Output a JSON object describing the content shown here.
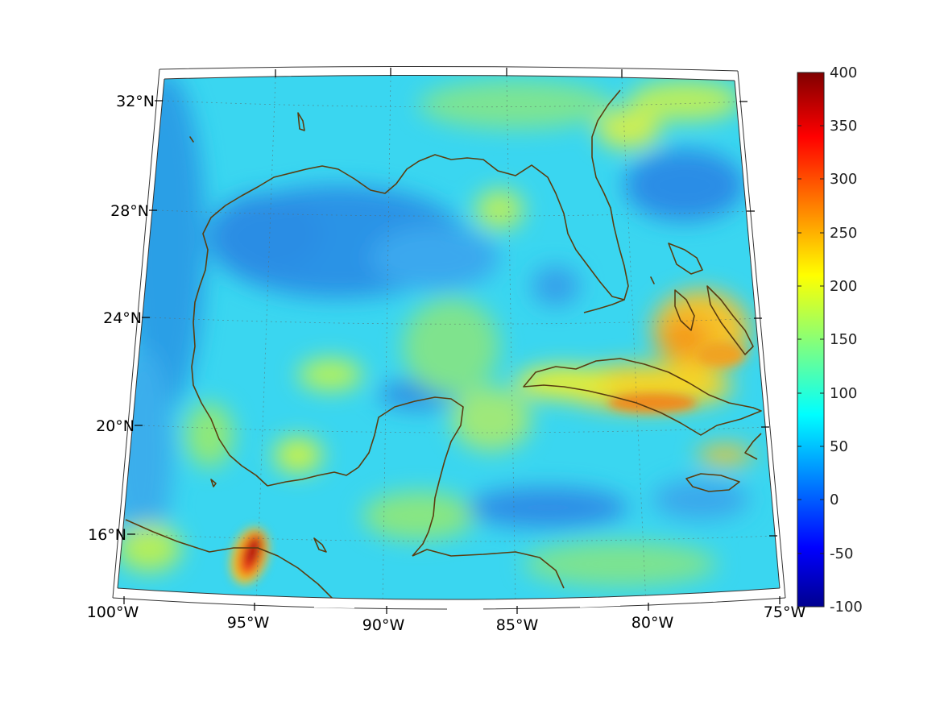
{
  "map": {
    "region": "Gulf of Mexico and Caribbean",
    "lon_labels": [
      "100°W",
      "95°W",
      "90°W",
      "85°W",
      "80°W",
      "75°W"
    ],
    "lat_labels": [
      "16°N",
      "20°N",
      "24°N",
      "28°N",
      "32°N"
    ],
    "coast_color": "#5a3d10"
  },
  "colorbar": {
    "ticks": [
      "400",
      "350",
      "300",
      "250",
      "200",
      "150",
      "100",
      "50",
      "0",
      "-50",
      "-100"
    ],
    "min": -100,
    "max": 400,
    "colormap": "jet"
  }
}
